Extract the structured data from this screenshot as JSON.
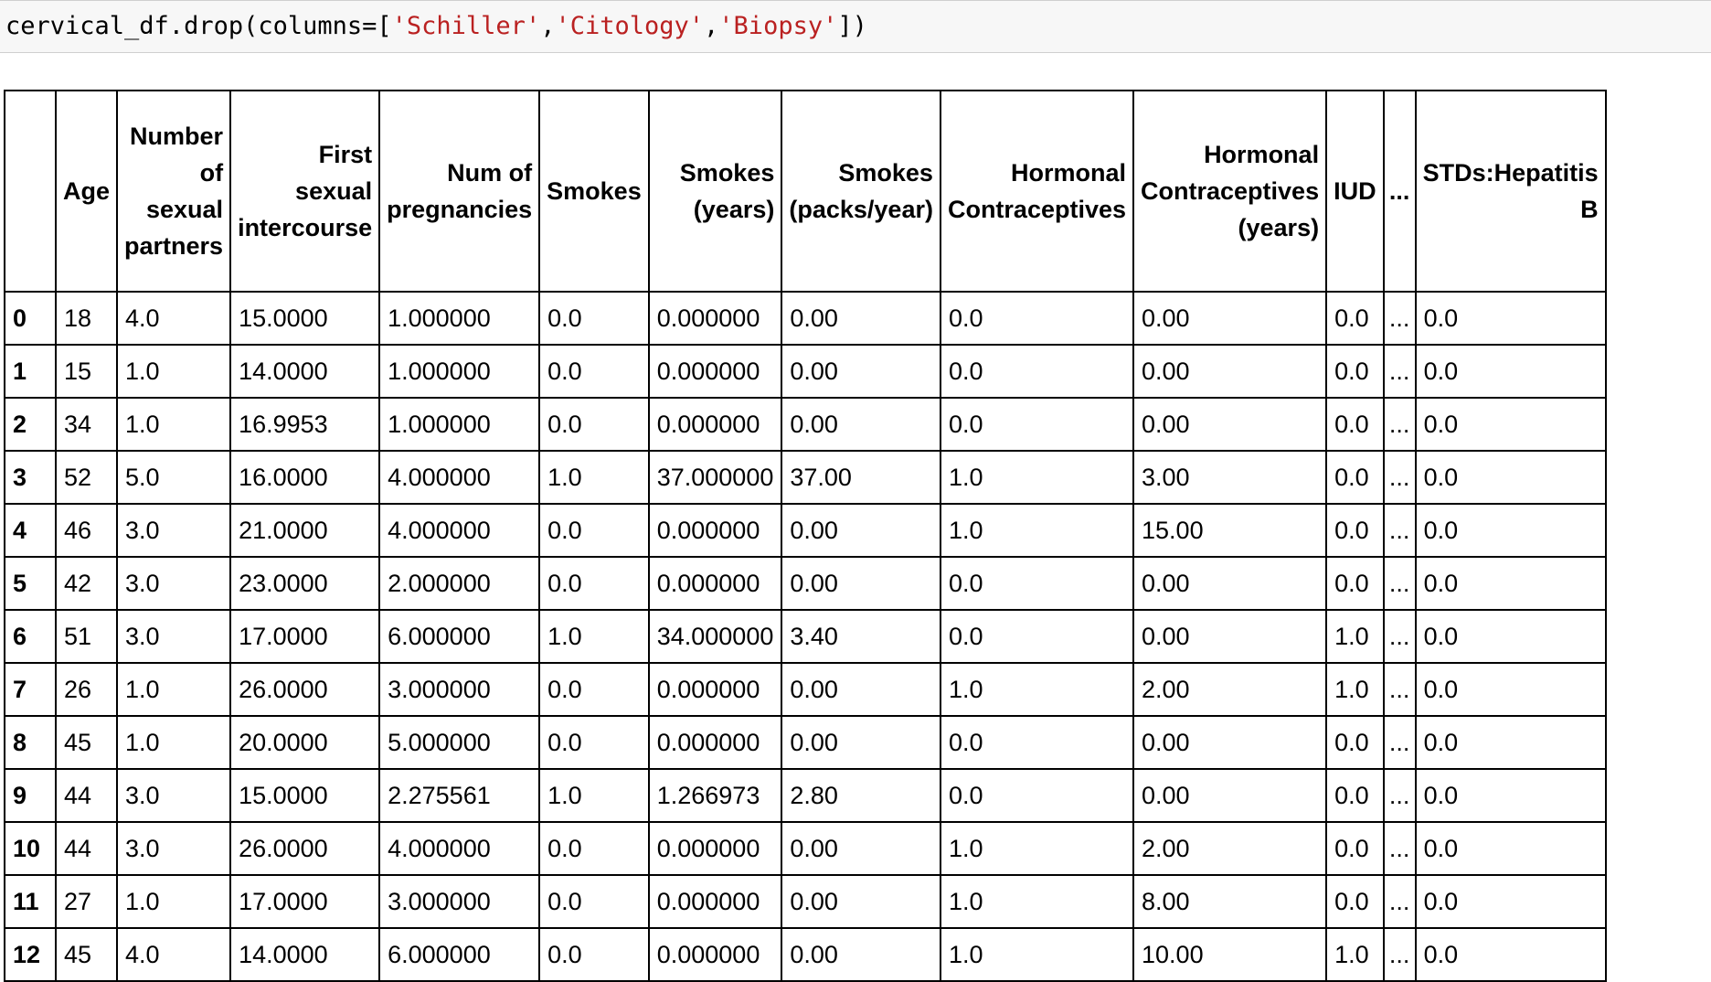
{
  "code_cell": {
    "prefix": "cervical_df.drop(columns=[",
    "arg1": "'Schiller'",
    "sep1": ",",
    "arg2": "'Citology'",
    "sep2": ",",
    "arg3": "'Biopsy'",
    "suffix": "])"
  },
  "table": {
    "columns": [
      "",
      "Age",
      "Number of sexual partners",
      "First sexual intercourse",
      "Num of pregnancies",
      "Smokes",
      "Smokes (years)",
      "Smokes (packs/year)",
      "Hormonal Contraceptives",
      "Hormonal Contraceptives (years)",
      "IUD",
      "...",
      "STDs:Hepatitis B"
    ],
    "rows": [
      [
        "0",
        "18",
        "4.0",
        "15.0000",
        "1.000000",
        "0.0",
        "0.000000",
        "0.00",
        "0.0",
        "0.00",
        "0.0",
        "...",
        "0.0"
      ],
      [
        "1",
        "15",
        "1.0",
        "14.0000",
        "1.000000",
        "0.0",
        "0.000000",
        "0.00",
        "0.0",
        "0.00",
        "0.0",
        "...",
        "0.0"
      ],
      [
        "2",
        "34",
        "1.0",
        "16.9953",
        "1.000000",
        "0.0",
        "0.000000",
        "0.00",
        "0.0",
        "0.00",
        "0.0",
        "...",
        "0.0"
      ],
      [
        "3",
        "52",
        "5.0",
        "16.0000",
        "4.000000",
        "1.0",
        "37.000000",
        "37.00",
        "1.0",
        "3.00",
        "0.0",
        "...",
        "0.0"
      ],
      [
        "4",
        "46",
        "3.0",
        "21.0000",
        "4.000000",
        "0.0",
        "0.000000",
        "0.00",
        "1.0",
        "15.00",
        "0.0",
        "...",
        "0.0"
      ],
      [
        "5",
        "42",
        "3.0",
        "23.0000",
        "2.000000",
        "0.0",
        "0.000000",
        "0.00",
        "0.0",
        "0.00",
        "0.0",
        "...",
        "0.0"
      ],
      [
        "6",
        "51",
        "3.0",
        "17.0000",
        "6.000000",
        "1.0",
        "34.000000",
        "3.40",
        "0.0",
        "0.00",
        "1.0",
        "...",
        "0.0"
      ],
      [
        "7",
        "26",
        "1.0",
        "26.0000",
        "3.000000",
        "0.0",
        "0.000000",
        "0.00",
        "1.0",
        "2.00",
        "1.0",
        "...",
        "0.0"
      ],
      [
        "8",
        "45",
        "1.0",
        "20.0000",
        "5.000000",
        "0.0",
        "0.000000",
        "0.00",
        "0.0",
        "0.00",
        "0.0",
        "...",
        "0.0"
      ],
      [
        "9",
        "44",
        "3.0",
        "15.0000",
        "2.275561",
        "1.0",
        "1.266973",
        "2.80",
        "0.0",
        "0.00",
        "0.0",
        "...",
        "0.0"
      ],
      [
        "10",
        "44",
        "3.0",
        "26.0000",
        "4.000000",
        "0.0",
        "0.000000",
        "0.00",
        "1.0",
        "2.00",
        "0.0",
        "...",
        "0.0"
      ],
      [
        "11",
        "27",
        "1.0",
        "17.0000",
        "3.000000",
        "0.0",
        "0.000000",
        "0.00",
        "1.0",
        "8.00",
        "0.0",
        "...",
        "0.0"
      ],
      [
        "12",
        "45",
        "4.0",
        "14.0000",
        "6.000000",
        "0.0",
        "0.000000",
        "0.00",
        "1.0",
        "10.00",
        "1.0",
        "...",
        "0.0"
      ]
    ]
  }
}
